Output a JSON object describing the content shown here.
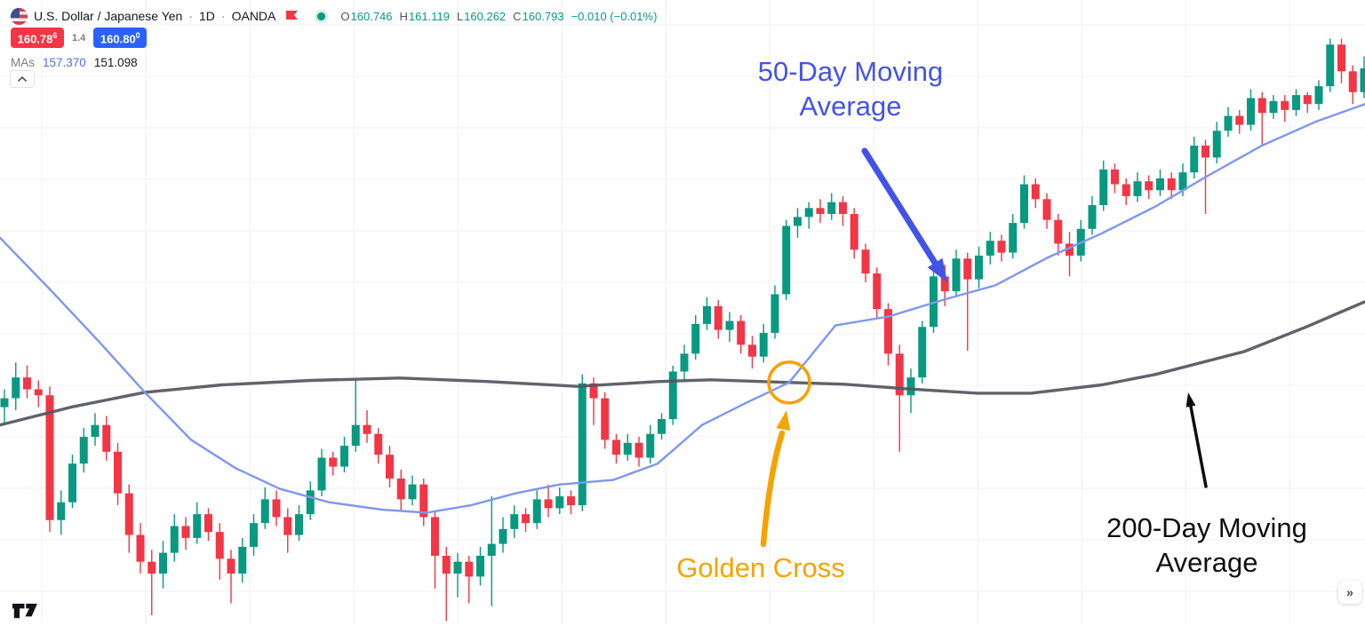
{
  "header": {
    "symbol_name": "U.S. Dollar / Japanese Yen",
    "separator": "·",
    "interval": "1D",
    "exchange": "OANDA",
    "ohlc": {
      "o_label": "O",
      "o": "160.746",
      "h_label": "H",
      "h": "161.119",
      "l_label": "L",
      "l": "160.262",
      "c_label": "C",
      "c": "160.793",
      "change": "−0.010 (−0.01%)"
    },
    "bid": {
      "main": "160.78",
      "sup": "6"
    },
    "spread": "1.4",
    "ask": {
      "main": "160.80",
      "sup": "0"
    },
    "mas": {
      "label": "MAs",
      "ma50_value": "157.370",
      "ma200_value": "151.098"
    }
  },
  "annotations": {
    "ma50_label": "50-Day Moving Average",
    "golden_cross_label": "Golden Cross",
    "ma200_label": "200-Day Moving Average"
  },
  "controls": {
    "more_glyph": "»"
  },
  "colors": {
    "up": "#089981",
    "down": "#f23645",
    "ma50_line": "#7e96f2",
    "ma200_line": "#54565e",
    "annotation_blue": "#4353e6",
    "annotation_orange": "#f5a300",
    "annotation_black": "#0f0f0f",
    "badge_red": "#f23645",
    "badge_blue": "#2962ff",
    "ohlc_green": "#089981"
  },
  "chart_data": {
    "type": "candlestick",
    "symbol": "USD/JPY",
    "interval": "1D",
    "ylim": [
      141.2,
      162.2
    ],
    "grid": {
      "vertical_start_x": 47,
      "vertical_spacing": 117,
      "horizontal_start_y": 28,
      "horizontal_spacing": 58
    },
    "candle_spacing": 12.75,
    "candle_x0": 5,
    "candle_width": 9,
    "candles": [
      [
        148.5,
        149.1,
        147.9,
        148.8
      ],
      [
        148.8,
        150.0,
        148.4,
        149.5
      ],
      [
        149.5,
        149.9,
        148.8,
        149.1
      ],
      [
        149.1,
        149.4,
        148.5,
        148.9
      ],
      [
        148.9,
        149.2,
        144.3,
        144.7
      ],
      [
        144.7,
        145.7,
        144.2,
        145.3
      ],
      [
        145.3,
        146.9,
        145.1,
        146.6
      ],
      [
        146.6,
        147.8,
        146.3,
        147.5
      ],
      [
        147.5,
        148.3,
        147.2,
        147.9
      ],
      [
        147.9,
        148.2,
        146.7,
        147.0
      ],
      [
        147.0,
        147.3,
        145.2,
        145.6
      ],
      [
        145.6,
        145.9,
        143.6,
        144.2
      ],
      [
        144.2,
        144.6,
        142.9,
        143.3
      ],
      [
        143.3,
        143.7,
        141.5,
        142.9
      ],
      [
        142.9,
        144.0,
        142.4,
        143.6
      ],
      [
        143.6,
        144.9,
        143.3,
        144.5
      ],
      [
        144.5,
        144.8,
        143.7,
        144.1
      ],
      [
        144.1,
        145.3,
        143.9,
        144.9
      ],
      [
        144.9,
        145.1,
        144.0,
        144.3
      ],
      [
        144.3,
        144.6,
        142.7,
        143.4
      ],
      [
        143.4,
        143.7,
        141.9,
        142.9
      ],
      [
        142.9,
        144.1,
        142.6,
        143.8
      ],
      [
        143.8,
        144.9,
        143.5,
        144.6
      ],
      [
        144.6,
        145.8,
        144.4,
        145.4
      ],
      [
        145.4,
        145.7,
        144.5,
        144.8
      ],
      [
        144.8,
        145.1,
        143.6,
        144.2
      ],
      [
        144.2,
        145.2,
        144.0,
        144.9
      ],
      [
        144.9,
        146.0,
        144.7,
        145.7
      ],
      [
        145.7,
        147.1,
        145.5,
        146.8
      ],
      [
        146.8,
        147.0,
        146.2,
        146.5
      ],
      [
        146.5,
        147.5,
        146.3,
        147.2
      ],
      [
        147.2,
        149.4,
        147.0,
        147.9
      ],
      [
        147.9,
        148.4,
        147.3,
        147.6
      ],
      [
        147.6,
        147.8,
        146.6,
        146.9
      ],
      [
        146.9,
        147.2,
        145.8,
        146.1
      ],
      [
        146.1,
        146.4,
        145.0,
        145.4
      ],
      [
        145.4,
        146.2,
        145.2,
        145.9
      ],
      [
        145.9,
        146.1,
        144.5,
        144.8
      ],
      [
        144.8,
        145.0,
        142.4,
        143.5
      ],
      [
        143.5,
        143.8,
        141.3,
        142.9
      ],
      [
        142.9,
        143.6,
        142.1,
        143.3
      ],
      [
        143.3,
        143.5,
        141.9,
        142.8
      ],
      [
        142.8,
        143.8,
        142.5,
        143.5
      ],
      [
        143.5,
        145.5,
        141.8,
        143.9
      ],
      [
        143.9,
        144.8,
        143.6,
        144.4
      ],
      [
        144.4,
        145.2,
        144.1,
        144.9
      ],
      [
        144.9,
        145.1,
        144.3,
        144.6
      ],
      [
        144.6,
        145.7,
        144.4,
        145.4
      ],
      [
        145.4,
        145.9,
        144.8,
        145.1
      ],
      [
        145.1,
        145.8,
        144.9,
        145.5
      ],
      [
        145.5,
        145.7,
        144.9,
        145.2
      ],
      [
        145.2,
        149.6,
        145.0,
        149.3
      ],
      [
        149.3,
        149.5,
        147.9,
        148.8
      ],
      [
        148.8,
        149.0,
        147.1,
        147.4
      ],
      [
        147.4,
        147.6,
        146.6,
        146.9
      ],
      [
        146.9,
        147.6,
        146.7,
        147.3
      ],
      [
        147.3,
        147.5,
        146.5,
        146.8
      ],
      [
        146.8,
        147.9,
        146.6,
        147.6
      ],
      [
        147.6,
        148.3,
        147.4,
        148.1
      ],
      [
        148.1,
        149.9,
        147.9,
        149.7
      ],
      [
        149.7,
        150.6,
        149.4,
        150.3
      ],
      [
        150.3,
        151.6,
        150.1,
        151.3
      ],
      [
        151.3,
        152.2,
        151.1,
        151.9
      ],
      [
        151.9,
        152.1,
        150.8,
        151.1
      ],
      [
        151.1,
        151.7,
        150.7,
        151.4
      ],
      [
        151.4,
        151.6,
        150.3,
        150.6
      ],
      [
        150.6,
        150.9,
        149.8,
        150.2
      ],
      [
        150.2,
        151.3,
        150.0,
        151.0
      ],
      [
        151.0,
        152.6,
        150.8,
        152.3
      ],
      [
        152.3,
        154.8,
        152.1,
        154.6
      ],
      [
        154.6,
        155.2,
        154.2,
        154.9
      ],
      [
        154.9,
        155.4,
        154.5,
        155.2
      ],
      [
        155.2,
        155.5,
        154.7,
        155.0
      ],
      [
        155.0,
        155.7,
        154.8,
        155.4
      ],
      [
        155.4,
        155.6,
        154.6,
        155.0
      ],
      [
        155.0,
        155.2,
        153.5,
        153.8
      ],
      [
        153.8,
        154.0,
        152.7,
        153.0
      ],
      [
        153.0,
        153.2,
        151.5,
        151.8
      ],
      [
        151.8,
        152.0,
        149.9,
        150.3
      ],
      [
        150.3,
        150.6,
        147.0,
        148.9
      ],
      [
        148.9,
        149.8,
        148.3,
        149.5
      ],
      [
        149.5,
        151.4,
        149.3,
        151.2
      ],
      [
        151.2,
        153.2,
        151.0,
        152.9
      ],
      [
        152.9,
        153.3,
        151.9,
        152.4
      ],
      [
        152.4,
        153.8,
        152.2,
        153.5
      ],
      [
        153.5,
        153.7,
        150.4,
        152.8
      ],
      [
        152.8,
        153.9,
        152.5,
        153.6
      ],
      [
        153.6,
        154.4,
        153.3,
        154.1
      ],
      [
        154.1,
        154.3,
        153.4,
        153.7
      ],
      [
        153.7,
        155.0,
        153.5,
        154.7
      ],
      [
        154.7,
        156.3,
        154.5,
        156.0
      ],
      [
        156.0,
        156.2,
        155.2,
        155.5
      ],
      [
        155.5,
        155.7,
        154.5,
        154.8
      ],
      [
        154.8,
        155.0,
        153.6,
        154.0
      ],
      [
        154.0,
        154.4,
        152.9,
        153.6
      ],
      [
        153.6,
        154.8,
        153.4,
        154.5
      ],
      [
        154.5,
        155.6,
        154.3,
        155.3
      ],
      [
        155.3,
        156.8,
        155.1,
        156.5
      ],
      [
        156.5,
        156.7,
        155.7,
        156.0
      ],
      [
        156.0,
        156.2,
        155.3,
        155.6
      ],
      [
        155.6,
        156.4,
        155.4,
        156.1
      ],
      [
        156.1,
        156.3,
        155.5,
        155.8
      ],
      [
        155.8,
        156.5,
        155.6,
        156.2
      ],
      [
        156.2,
        156.4,
        155.5,
        155.8
      ],
      [
        155.8,
        156.7,
        155.6,
        156.4
      ],
      [
        156.4,
        157.6,
        156.2,
        157.3
      ],
      [
        157.3,
        157.5,
        155.0,
        156.9
      ],
      [
        156.9,
        158.1,
        156.7,
        157.8
      ],
      [
        157.8,
        158.6,
        157.6,
        158.3
      ],
      [
        158.3,
        158.5,
        157.7,
        158.0
      ],
      [
        158.0,
        159.2,
        157.8,
        158.9
      ],
      [
        158.9,
        159.1,
        157.3,
        158.4
      ],
      [
        158.4,
        159.0,
        158.2,
        158.8
      ],
      [
        158.8,
        159.0,
        158.1,
        158.5
      ],
      [
        158.5,
        159.2,
        158.3,
        159.0
      ],
      [
        159.0,
        159.1,
        158.4,
        158.7
      ],
      [
        158.7,
        159.5,
        158.5,
        159.3
      ],
      [
        159.3,
        160.9,
        159.1,
        160.7
      ],
      [
        160.7,
        160.9,
        159.4,
        159.8
      ],
      [
        159.8,
        160.0,
        158.7,
        159.1
      ],
      [
        159.1,
        160.3,
        158.9,
        159.9
      ]
    ],
    "ma50": [
      [
        0,
        154.2
      ],
      [
        55,
        152.5
      ],
      [
        110,
        150.75
      ],
      [
        163,
        149.0
      ],
      [
        215,
        147.4
      ],
      [
        265,
        146.45
      ],
      [
        315,
        145.75
      ],
      [
        370,
        145.3
      ],
      [
        430,
        145.05
      ],
      [
        480,
        144.95
      ],
      [
        530,
        145.2
      ],
      [
        580,
        145.6
      ],
      [
        630,
        145.9
      ],
      [
        690,
        146.05
      ],
      [
        740,
        146.6
      ],
      [
        790,
        147.9
      ],
      [
        840,
        148.65
      ],
      [
        888,
        149.33
      ],
      [
        940,
        151.25
      ],
      [
        1000,
        151.55
      ],
      [
        1060,
        152.1
      ],
      [
        1120,
        152.6
      ],
      [
        1180,
        153.55
      ],
      [
        1240,
        154.35
      ],
      [
        1300,
        155.25
      ],
      [
        1360,
        156.3
      ],
      [
        1420,
        157.3
      ],
      [
        1480,
        158.1
      ],
      [
        1536,
        158.7
      ]
    ],
    "ma200": [
      [
        0,
        147.9
      ],
      [
        80,
        148.5
      ],
      [
        163,
        149.0
      ],
      [
        250,
        149.25
      ],
      [
        350,
        149.4
      ],
      [
        450,
        149.48
      ],
      [
        550,
        149.36
      ],
      [
        650,
        149.2
      ],
      [
        740,
        149.36
      ],
      [
        800,
        149.42
      ],
      [
        888,
        149.33
      ],
      [
        950,
        149.27
      ],
      [
        1020,
        149.12
      ],
      [
        1100,
        148.97
      ],
      [
        1160,
        148.97
      ],
      [
        1240,
        149.25
      ],
      [
        1300,
        149.6
      ],
      [
        1400,
        150.37
      ],
      [
        1470,
        151.2
      ],
      [
        1536,
        152.05
      ]
    ],
    "golden_cross": {
      "x": 888,
      "price": 149.33
    }
  }
}
